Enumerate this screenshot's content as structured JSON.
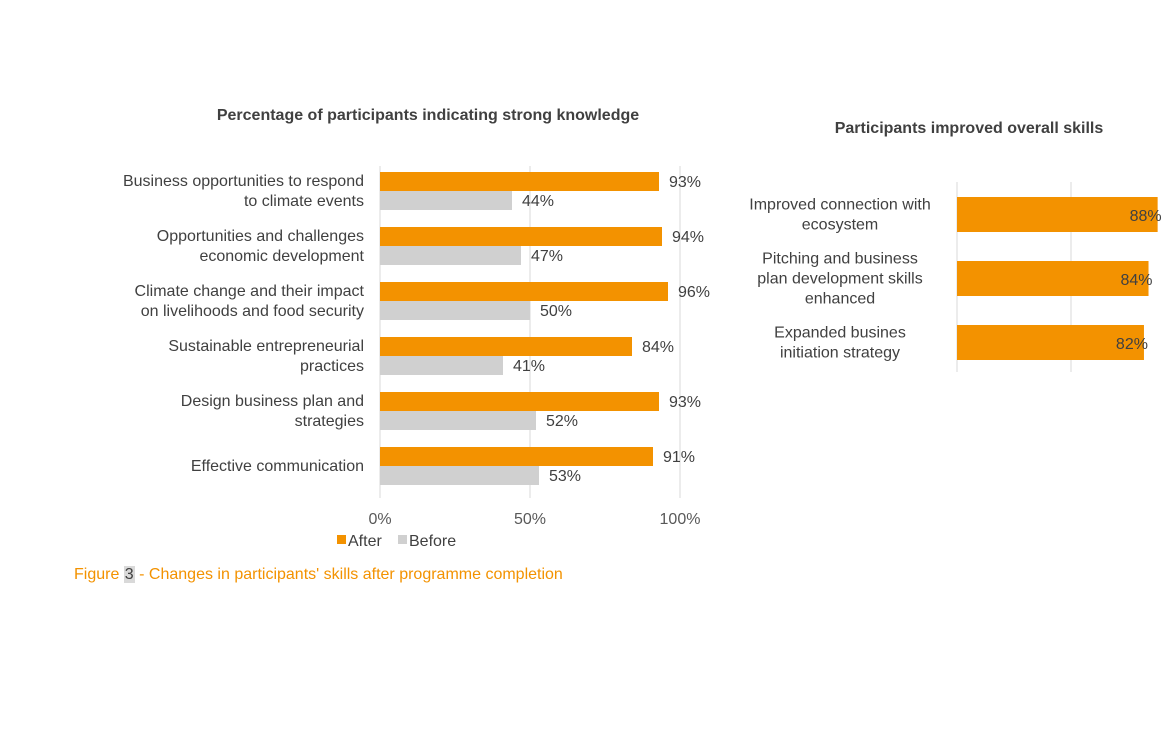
{
  "colors": {
    "after": "#f39200",
    "before": "#d0d0d0",
    "caption": "#f39200"
  },
  "caption": {
    "prefix": "Figure ",
    "number": "3",
    "suffix": " - Changes in participants' skills after programme completion"
  },
  "chart_data": [
    {
      "type": "bar",
      "orientation": "horizontal",
      "title": "Percentage of participants indicating strong knowledge",
      "categories": [
        [
          "Business opportunities to respond",
          "to climate events"
        ],
        [
          "Opportunities and challenges",
          "economic development"
        ],
        [
          "Climate change and their impact",
          "on livelihoods and food security"
        ],
        [
          "Sustainable entrepreneurial",
          "practices"
        ],
        [
          "Design business plan and",
          "strategies"
        ],
        [
          "Effective communication"
        ]
      ],
      "series": [
        {
          "name": "After",
          "values": [
            93,
            94,
            96,
            84,
            93,
            91
          ],
          "labels": [
            "93%",
            "94%",
            "96%",
            "84%",
            "93%",
            "91%"
          ]
        },
        {
          "name": "Before",
          "values": [
            44,
            47,
            50,
            41,
            52,
            53
          ],
          "labels": [
            "44%",
            "47%",
            "50%",
            "41%",
            "52%",
            "53%"
          ]
        }
      ],
      "xlim": [
        0,
        100
      ],
      "xticks": [
        0,
        50,
        100
      ],
      "xtick_labels": [
        "0%",
        "50%",
        "100%"
      ],
      "grid": true,
      "legend": {
        "position": "bottom",
        "entries": [
          "After",
          "Before"
        ]
      }
    },
    {
      "type": "bar",
      "orientation": "horizontal",
      "title": "Participants improved overall skills",
      "categories": [
        [
          "Improved connection with",
          "ecosystem"
        ],
        [
          "Pitching and business",
          "plan development skills",
          "enhanced"
        ],
        [
          "Expanded busines",
          "initiation strategy"
        ]
      ],
      "series": [
        {
          "values": [
            88,
            84,
            82
          ],
          "labels": [
            "88%",
            "84%",
            "82%"
          ]
        }
      ],
      "grid": true
    }
  ]
}
